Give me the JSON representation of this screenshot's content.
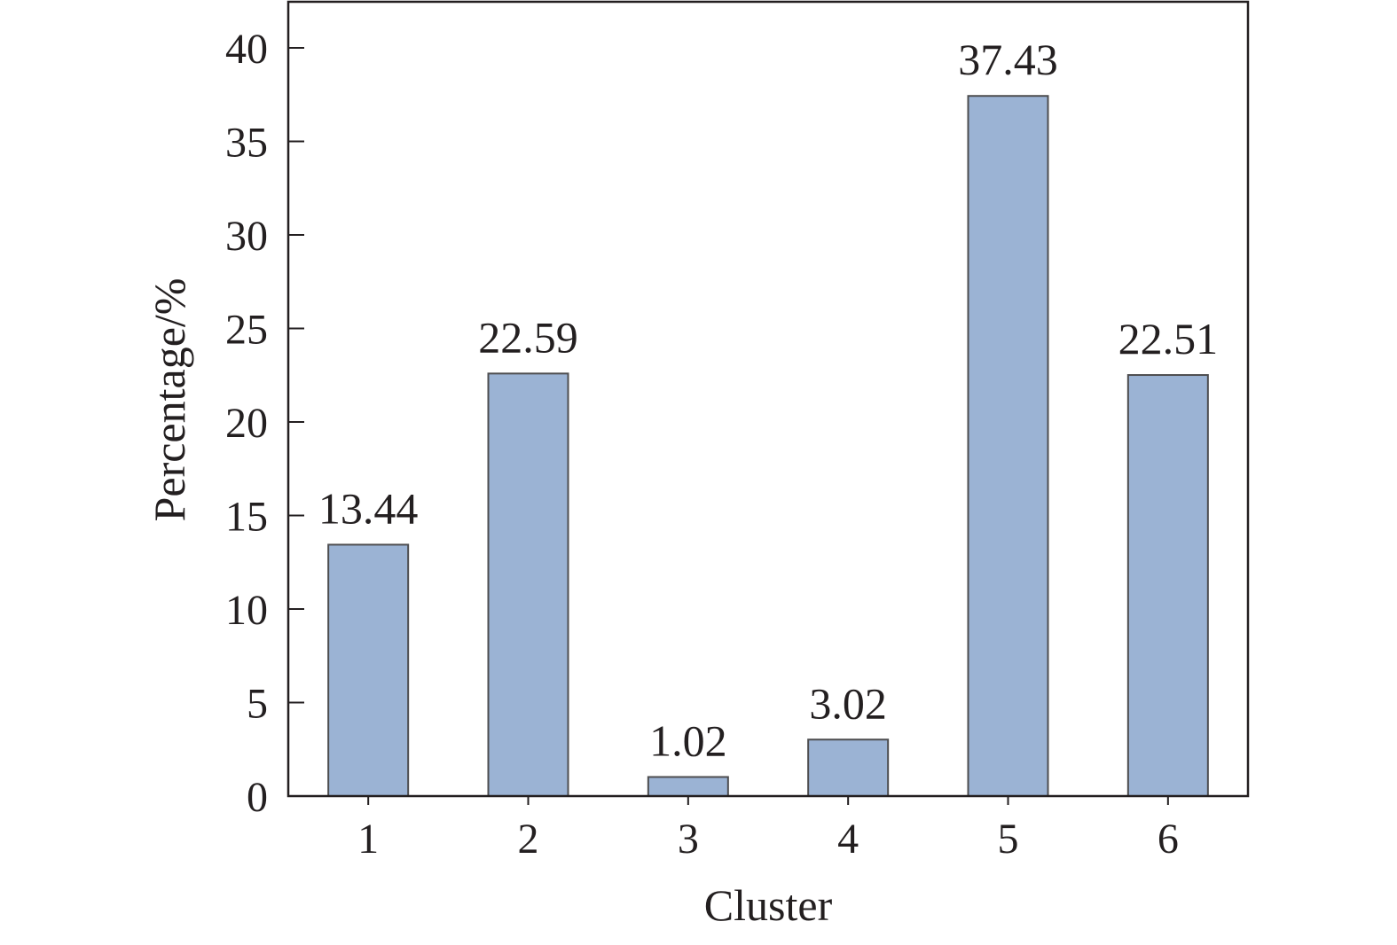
{
  "chart_data": {
    "type": "bar",
    "title": "",
    "xlabel": "Cluster",
    "ylabel": "Percentage/%",
    "categories": [
      "1",
      "2",
      "3",
      "4",
      "5",
      "6"
    ],
    "values": [
      13.44,
      22.59,
      1.02,
      3.02,
      37.43,
      22.51
    ],
    "value_labels": [
      "13.44",
      "22.59",
      "1.02",
      "3.02",
      "37.43",
      "22.51"
    ],
    "ylim": [
      0,
      42.5
    ],
    "yticks": [
      0,
      5,
      10,
      15,
      20,
      25,
      30,
      35,
      40
    ],
    "ytick_labels": [
      "0",
      "5",
      "10",
      "15",
      "20",
      "25",
      "30",
      "35",
      "40"
    ],
    "grid": false,
    "legend": "none",
    "colors": {
      "bar_fill": "#9bb3d4",
      "bar_stroke": "#4d4d4f",
      "axis": "#231f20"
    }
  }
}
